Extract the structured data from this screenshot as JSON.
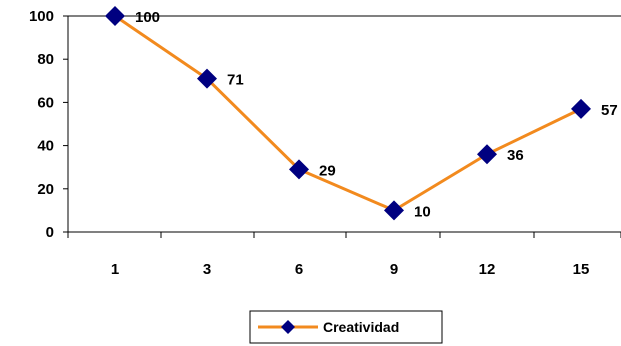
{
  "chart_data": {
    "type": "line",
    "categories": [
      "1",
      "3",
      "6",
      "9",
      "12",
      "15"
    ],
    "series": [
      {
        "name": "Creatividad",
        "values": [
          100,
          71,
          29,
          10,
          36,
          57
        ],
        "line_color": "#F28A1E",
        "marker_color": "#000080",
        "marker": "diamond"
      }
    ],
    "data_labels": [
      "100",
      "71",
      "29",
      "10",
      "36",
      "57"
    ],
    "y_ticks": [
      "0",
      "20",
      "40",
      "60",
      "80",
      "100"
    ],
    "ylim": [
      0,
      100
    ],
    "grid": false,
    "legend_position": "bottom-center"
  }
}
